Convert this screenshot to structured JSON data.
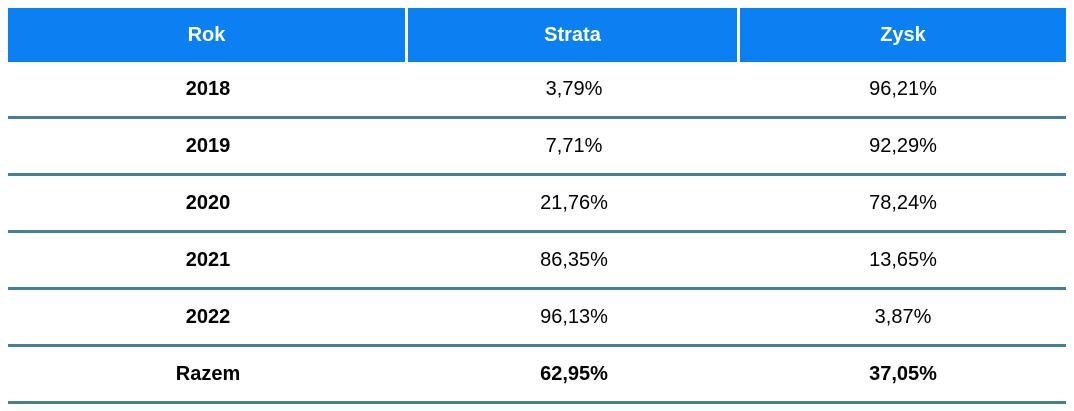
{
  "table": {
    "headers": [
      "Rok",
      "Strata",
      "Zysk"
    ],
    "rows": [
      {
        "year": "2018",
        "strata": "3,79%",
        "zysk": "96,21%"
      },
      {
        "year": "2019",
        "strata": "7,71%",
        "zysk": "92,29%"
      },
      {
        "year": "2020",
        "strata": "21,76%",
        "zysk": "78,24%"
      },
      {
        "year": "2021",
        "strata": "86,35%",
        "zysk": "13,65%"
      },
      {
        "year": "2022",
        "strata": "96,13%",
        "zysk": "3,87%"
      }
    ],
    "total": {
      "label": "Razem",
      "strata": "62,95%",
      "zysk": "37,05%"
    }
  },
  "colors": {
    "header_background": "#0b80f2",
    "header_text": "#ffffff",
    "row_divider": "#44809c",
    "body_text": "#000000"
  },
  "chart_data": {
    "type": "table",
    "columns": [
      "Rok",
      "Strata",
      "Zysk"
    ],
    "categories": [
      "2018",
      "2019",
      "2020",
      "2021",
      "2022"
    ],
    "series": [
      {
        "name": "Strata",
        "values": [
          3.79,
          7.71,
          21.76,
          86.35,
          96.13
        ]
      },
      {
        "name": "Zysk",
        "values": [
          96.21,
          92.29,
          78.24,
          13.65,
          3.87
        ]
      }
    ],
    "totals_row": {
      "label": "Razem",
      "Strata": 62.95,
      "Zysk": 37.05
    },
    "rows": [
      [
        "2018",
        "3,79%",
        "96,21%"
      ],
      [
        "2019",
        "7,71%",
        "92,29%"
      ],
      [
        "2020",
        "21,76%",
        "78,24%"
      ],
      [
        "2021",
        "86,35%",
        "13,65%"
      ],
      [
        "2022",
        "96,13%",
        "3,87%"
      ],
      [
        "Razem",
        "62,95%",
        "37,05%"
      ]
    ],
    "layout_hints": {
      "header_style": "blue background, white bold text, white vertical separators",
      "body_style": "no vertical lines, steel-blue horizontal dividers, all cells centered",
      "value_format": "percent with comma decimal separator (Polish locale)"
    }
  }
}
